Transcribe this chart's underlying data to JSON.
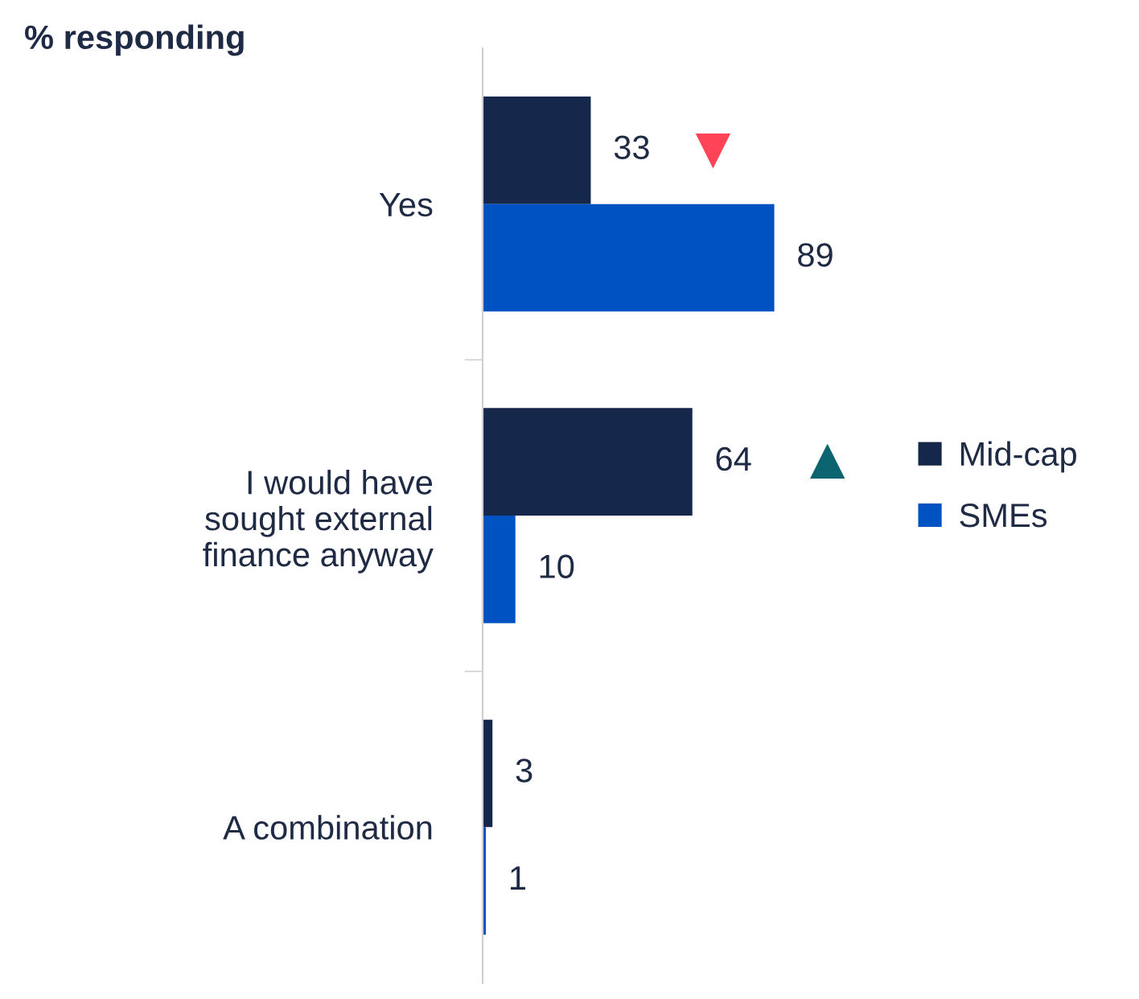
{
  "chart_data": {
    "type": "bar",
    "orientation": "horizontal",
    "title": "% responding",
    "categories": [
      "Yes",
      "I would have\nsought external\nfinance anyway",
      "A combination"
    ],
    "series": [
      {
        "name": "Mid-cap",
        "color": "#15284b",
        "values": [
          33,
          64,
          3
        ]
      },
      {
        "name": "SMEs",
        "color": "#0052c3",
        "values": [
          89,
          10,
          1
        ]
      }
    ],
    "data_labels": true,
    "legend": "right",
    "tick_labels": "y",
    "grid": false
  }
}
